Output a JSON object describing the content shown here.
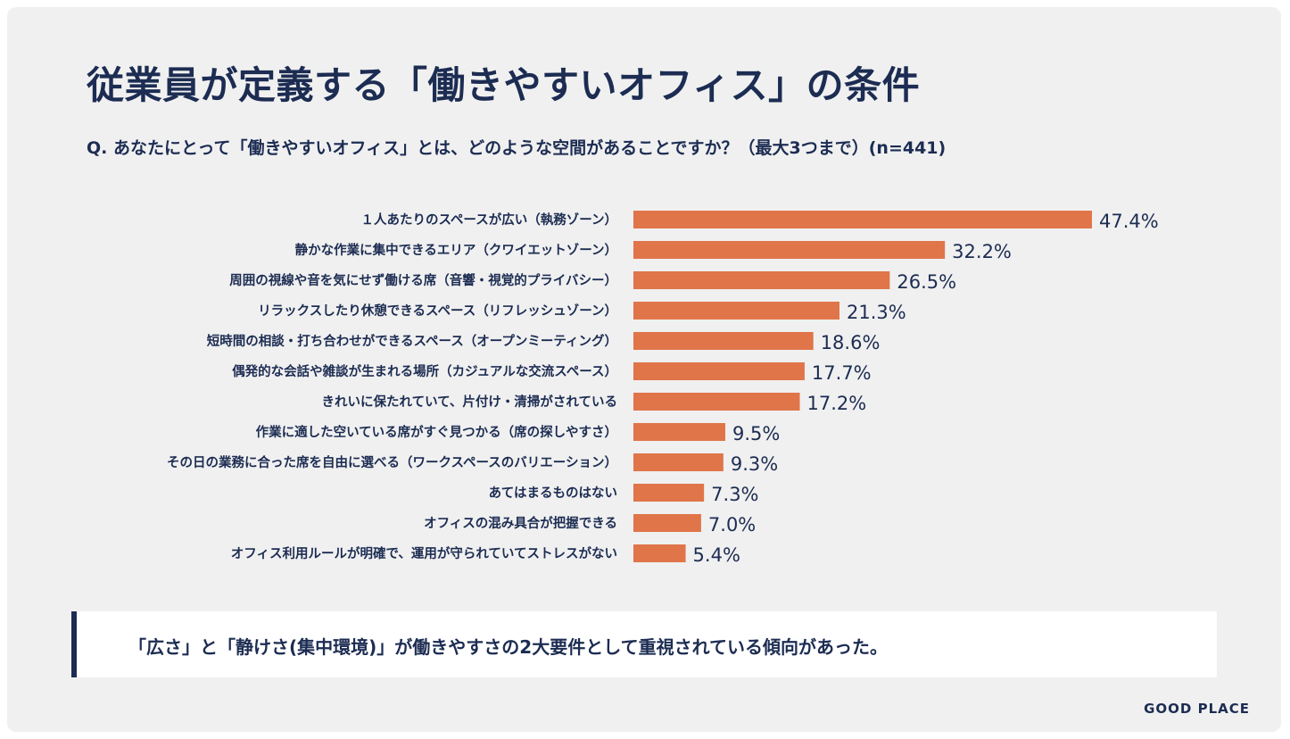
{
  "title": "従業員が定義する「働きやすいオフィス」の条件",
  "question": "Q. あなたにとって「働きやすいオフィス」とは、どのような空間があることですか？（最大3つまで）(n=441)",
  "summary": "「広さ」と「静けさ(集中環境)」が働きやすさの2大要件として重視されている傾向があった。",
  "brand": "GOOD PLACE",
  "colors": {
    "bar": "#e0754a",
    "text": "#1c2c52",
    "background": "#f0f0f0"
  },
  "chart_data": {
    "type": "bar",
    "orientation": "horizontal",
    "categories": [
      "１人あたりのスペースが広い（執務ゾーン）",
      "静かな作業に集中できるエリア（クワイエットゾーン）",
      "周囲の視線や音を気にせず働ける席（音響・視覚的プライバシー）",
      "リラックスしたり休憩できるスペース（リフレッシュゾーン）",
      "短時間の相談・打ち合わせができるスペース（オープンミーティング）",
      "偶発的な会話や雑談が生まれる場所（カジュアルな交流スペース）",
      "きれいに保たれていて、片付け・清掃がされている",
      "作業に適した空いている席がすぐ見つかる（席の探しやすさ）",
      "その日の業務に合った席を自由に選べる（ワークスペースのバリエーション）",
      "あてはまるものはない",
      "オフィスの混み具合が把握できる",
      "オフィス利用ルールが明確で、運用が守られていてストレスがない"
    ],
    "values": [
      47.4,
      32.2,
      26.5,
      21.3,
      18.6,
      17.7,
      17.2,
      9.5,
      9.3,
      7.3,
      7.0,
      5.4
    ],
    "value_labels": [
      "47.4%",
      "32.2%",
      "26.5%",
      "21.3%",
      "18.6%",
      "17.7%",
      "17.2%",
      "9.5%",
      "9.3%",
      "7.3%",
      "7.0%",
      "5.4%"
    ],
    "unit": "%"
  }
}
